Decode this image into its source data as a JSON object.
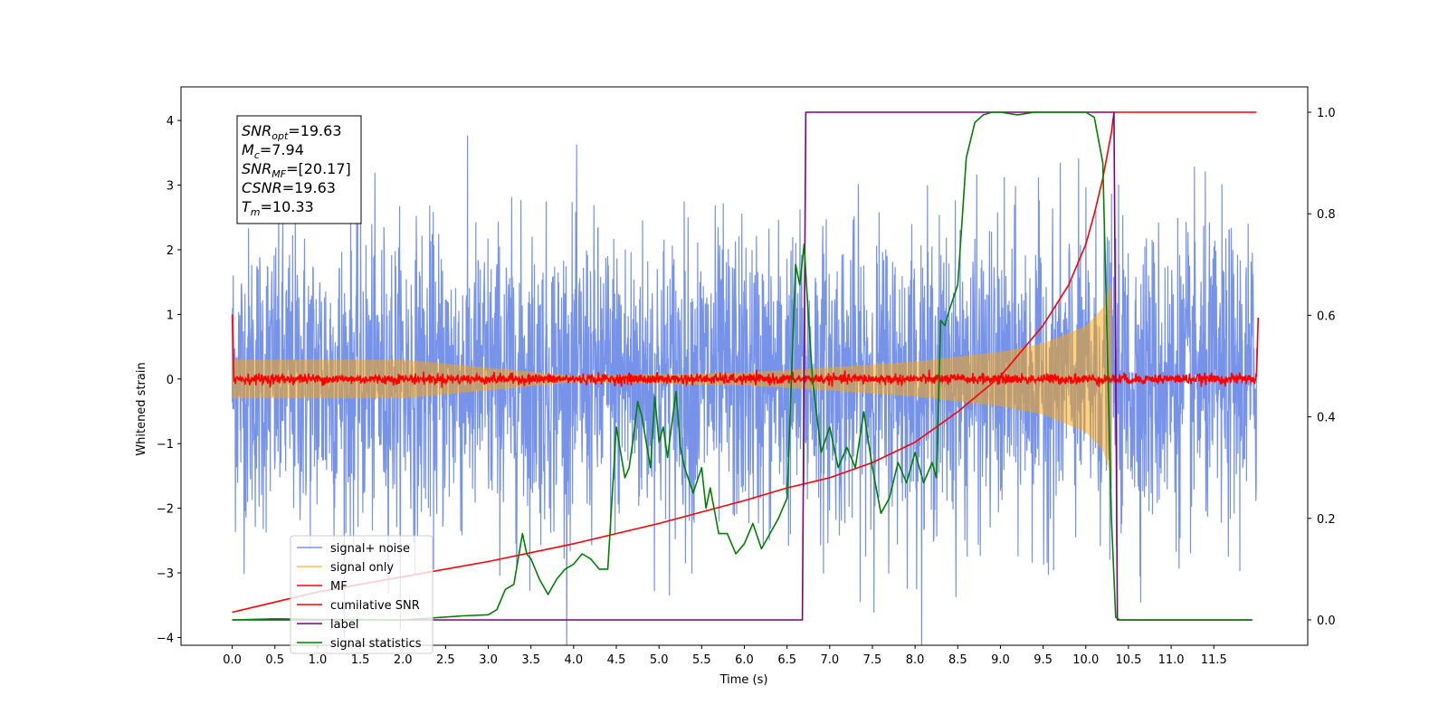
{
  "chart_data": {
    "type": "line",
    "xlabel": "Time (s)",
    "ylabel": "Whitened strain",
    "xlim": [
      -0.6,
      12.6
    ],
    "ylim": [
      -4.12,
      4.52
    ],
    "y2lim": [
      -0.05,
      1.05
    ],
    "x_ticks": [
      "0.0",
      "0.5",
      "1.0",
      "1.5",
      "2.0",
      "2.5",
      "3.0",
      "3.5",
      "4.0",
      "4.5",
      "5.0",
      "5.5",
      "6.0",
      "6.5",
      "7.0",
      "7.5",
      "8.0",
      "8.5",
      "9.0",
      "9.5",
      "10.0",
      "10.5",
      "11.0",
      "11.5"
    ],
    "y_ticks": [
      "-4",
      "-3",
      "-2",
      "-1",
      "0",
      "1",
      "2",
      "3",
      "4"
    ],
    "y2_ticks": [
      "0.0",
      "0.2",
      "0.4",
      "0.6",
      "0.8",
      "1.0"
    ],
    "info_box": [
      {
        "sym": "SNR",
        "sub": "opt",
        "val": "=19.63"
      },
      {
        "sym": "M",
        "sub": "c",
        "val": "=7.94"
      },
      {
        "sym": "SNR",
        "sub": "MF",
        "val": "=[20.17]"
      },
      {
        "sym": "CSNR",
        "sub": "",
        "val": "=19.63"
      },
      {
        "sym": "T",
        "sub": "m",
        "val": "=10.33"
      }
    ],
    "legend": {
      "placement": "lower-left",
      "entries": [
        {
          "label": "signal+ noise",
          "color": "#4169e1"
        },
        {
          "label": "signal only",
          "color": "#ffa500"
        },
        {
          "label": "MF",
          "color": "#ff0000"
        },
        {
          "label": "cumilative SNR",
          "color": "#ff0000"
        },
        {
          "label": "label",
          "color": "#800080"
        },
        {
          "label": "signal statistics",
          "color": "#008000"
        }
      ]
    },
    "series": [
      {
        "name": "signal+ noise",
        "axis": "left",
        "color": "#4169e1",
        "x_range": [
          0,
          12
        ],
        "noise_std": 1.15,
        "peak_abs": 4.2
      },
      {
        "name": "signal only",
        "axis": "left",
        "color": "#ffa500",
        "x_range": [
          0,
          10.3
        ],
        "envelope": {
          "x": [
            0,
            2,
            4,
            6,
            7,
            8,
            9,
            9.5,
            10,
            10.2,
            10.3
          ],
          "y": [
            0.3,
            0.3,
            0.05,
            0.1,
            0.18,
            0.27,
            0.42,
            0.55,
            0.82,
            1.1,
            1.5
          ]
        }
      },
      {
        "name": "MF",
        "axis": "left",
        "color": "#ff0000",
        "x": [
          0,
          0.02,
          12.0,
          12.02
        ],
        "y": [
          1.0,
          0.0,
          0.0,
          0.95
        ],
        "noise_std": 0.04
      },
      {
        "name": "cumilative SNR",
        "axis": "right",
        "color": "#ff0000",
        "x": [
          0.0,
          0.5,
          1.0,
          2.0,
          3.0,
          4.0,
          5.0,
          6.0,
          6.5,
          7.0,
          7.5,
          8.0,
          8.5,
          9.0,
          9.5,
          9.8,
          10.0,
          10.1,
          10.2,
          10.3,
          10.33,
          12.0
        ],
        "y": [
          0.015,
          0.035,
          0.055,
          0.085,
          0.115,
          0.15,
          0.19,
          0.235,
          0.26,
          0.28,
          0.31,
          0.35,
          0.41,
          0.48,
          0.58,
          0.66,
          0.74,
          0.8,
          0.87,
          0.96,
          1.0,
          1.0
        ]
      },
      {
        "name": "label",
        "axis": "right",
        "color": "#800080",
        "x": [
          0.0,
          6.68,
          6.72,
          10.33,
          10.37,
          11.95
        ],
        "y": [
          0.0,
          0.0,
          1.0,
          1.0,
          0.0,
          0.0
        ]
      },
      {
        "name": "signal statistics",
        "axis": "right",
        "color": "#008000",
        "x": [
          0.0,
          0.5,
          1.0,
          2.0,
          2.7,
          3.0,
          3.1,
          3.2,
          3.3,
          3.4,
          3.45,
          3.5,
          3.6,
          3.7,
          3.8,
          3.9,
          4.0,
          4.1,
          4.2,
          4.3,
          4.4,
          4.5,
          4.6,
          4.65,
          4.7,
          4.75,
          4.8,
          4.9,
          4.95,
          5.0,
          5.05,
          5.1,
          5.2,
          5.25,
          5.3,
          5.4,
          5.5,
          5.55,
          5.6,
          5.7,
          5.8,
          5.9,
          6.0,
          6.1,
          6.2,
          6.3,
          6.4,
          6.5,
          6.6,
          6.65,
          6.7,
          6.75,
          6.8,
          6.9,
          7.0,
          7.1,
          7.2,
          7.3,
          7.4,
          7.5,
          7.6,
          7.7,
          7.8,
          7.9,
          8.0,
          8.1,
          8.2,
          8.25,
          8.3,
          8.35,
          8.4,
          8.5,
          8.6,
          8.7,
          8.8,
          8.9,
          9.0,
          9.2,
          9.4,
          9.6,
          9.8,
          10.0,
          10.1,
          10.2,
          10.3,
          10.35,
          10.4,
          11.0,
          11.95
        ],
        "y": [
          0.0,
          0.002,
          0.001,
          0.0,
          0.008,
          0.01,
          0.02,
          0.06,
          0.07,
          0.17,
          0.13,
          0.12,
          0.08,
          0.05,
          0.08,
          0.1,
          0.11,
          0.13,
          0.12,
          0.1,
          0.1,
          0.38,
          0.28,
          0.3,
          0.36,
          0.43,
          0.4,
          0.3,
          0.44,
          0.35,
          0.38,
          0.32,
          0.45,
          0.34,
          0.3,
          0.25,
          0.3,
          0.22,
          0.26,
          0.17,
          0.17,
          0.13,
          0.15,
          0.19,
          0.14,
          0.17,
          0.2,
          0.24,
          0.7,
          0.66,
          0.74,
          0.6,
          0.47,
          0.33,
          0.38,
          0.3,
          0.34,
          0.3,
          0.41,
          0.3,
          0.21,
          0.24,
          0.31,
          0.27,
          0.33,
          0.27,
          0.31,
          0.28,
          0.59,
          0.58,
          0.61,
          0.66,
          0.91,
          0.98,
          0.995,
          1.0,
          1.0,
          0.995,
          1.0,
          1.0,
          1.0,
          1.0,
          0.99,
          0.9,
          0.2,
          0.005,
          0.0,
          0.0,
          0.0
        ]
      }
    ]
  }
}
